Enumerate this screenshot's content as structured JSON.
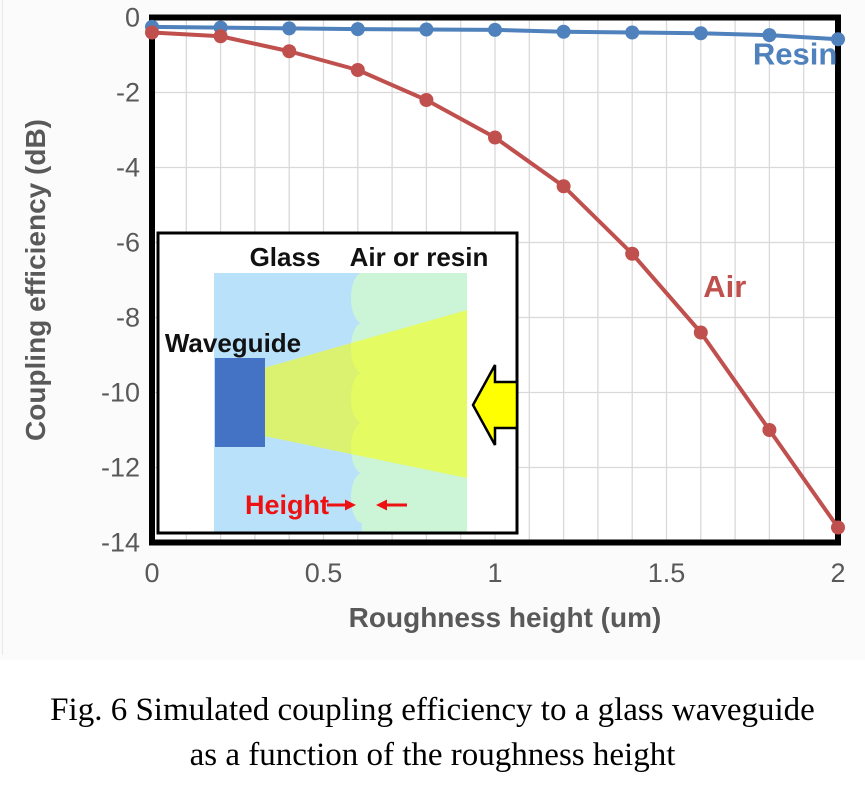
{
  "chart_data": {
    "type": "line",
    "title": "",
    "xlabel": "Roughness height (um)",
    "ylabel": "Coupling efficiency (dB)",
    "xlim": [
      0,
      2
    ],
    "ylim": [
      -14,
      0
    ],
    "xticks": [
      0,
      0.5,
      1,
      1.5,
      2
    ],
    "xtick_labels": [
      "0",
      "0.5",
      "1",
      "1.5",
      "2"
    ],
    "yticks": [
      0,
      -2,
      -4,
      -6,
      -8,
      -10,
      -12,
      -14
    ],
    "x_minor_grid_step": 0.1,
    "grid": true,
    "legend_position": "inline-labels",
    "x": [
      0,
      0.2,
      0.4,
      0.6,
      0.8,
      1.0,
      1.2,
      1.4,
      1.6,
      1.8,
      2.0
    ],
    "series": [
      {
        "name": "Resin",
        "color": "#4F81BD",
        "values": [
          -0.25,
          -0.27,
          -0.29,
          -0.31,
          -0.32,
          -0.33,
          -0.38,
          -0.4,
          -0.42,
          -0.47,
          -0.58
        ],
        "label": {
          "x": 1.875,
          "y": -1.25
        }
      },
      {
        "name": "Air",
        "color": "#C0504D",
        "values": [
          -0.4,
          -0.5,
          -0.9,
          -1.4,
          -2.2,
          -3.2,
          -4.5,
          -6.3,
          -8.4,
          -11.0,
          -13.6
        ],
        "label": {
          "x": 1.67,
          "y": -7.45
        }
      }
    ]
  },
  "inset": {
    "label_glass": "Glass",
    "label_medium": "Air or resin",
    "label_waveguide": "Waveguide",
    "label_height": "Height",
    "colors": {
      "glass_bg": "#b9e2fa",
      "medium_bg": "#ccf5d8",
      "waveguide": "#4472c4",
      "beam_overlay": "rgba(247,255,0,0.55)",
      "arrow_fill": "#ffff00",
      "height_red": "#ee1111",
      "label_text": "#111111"
    }
  },
  "caption": {
    "line1": "Fig. 6 Simulated coupling efficiency to a glass waveguide",
    "line2": "as a function of the roughness height"
  },
  "colors": {
    "figure_bg": "#fbfbfb",
    "plot_bg": "#ffffff",
    "grid": "#d9d9d9",
    "axis_text": "#595959",
    "border": "#000000",
    "image_edge": "#e8e8e8"
  }
}
